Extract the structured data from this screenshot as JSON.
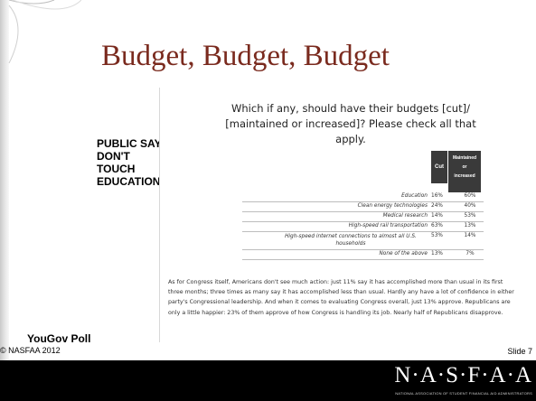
{
  "slide": {
    "title": "Budget, Budget, Budget",
    "side_note": "PUBLIC SAYS DON'T TOUCH EDUCATION!",
    "source_label": "YouGov Poll",
    "copyright": "© NASFAA 2012",
    "slide_number": "Slide 7",
    "logo_text": "N·A·S·F·A·A",
    "logo_tagline": "NATIONAL ASSOCIATION OF STUDENT FINANCIAL AID ADMINISTRATORS"
  },
  "poll": {
    "question": "Which if any, should have their budgets [cut]/ [maintained or increased]? Please check all that apply.",
    "columns": {
      "cut": "Cut",
      "maintained_top": "Maintained",
      "maintained_mid": "or",
      "maintained_bot": "increased"
    },
    "rows": [
      {
        "label": "Education",
        "cut": "16%",
        "maintained": "60%"
      },
      {
        "label": "Clean energy technologies",
        "cut": "24%",
        "maintained": "40%"
      },
      {
        "label": "Medical research",
        "cut": "14%",
        "maintained": "53%"
      },
      {
        "label": "High-speed rail transportation",
        "cut": "63%",
        "maintained": "13%"
      },
      {
        "label": "High-speed internet connections to almost all U.S. households",
        "cut": "53%",
        "maintained": "14%"
      },
      {
        "label": "None of the above",
        "cut": "13%",
        "maintained": "7%"
      }
    ],
    "paragraph": "As for Congress itself, Americans don't see much action: just 11% say it has accomplished more than usual in its first three months; three times as many say it has accomplished less than usual. Hardly any have a lot of confidence in either party's Congressional leadership. And when it comes to evaluating Congress overall, just 13% approve. Republicans are only a little happier: 23% of them approve of how Congress is handling its job. Nearly half of Republicans disapprove."
  },
  "chart_data": {
    "type": "table",
    "title": "Which if any, should have their budgets [cut]/ [maintained or increased]? Please check all that apply.",
    "columns": [
      "Cut",
      "Maintained or increased"
    ],
    "categories": [
      "Education",
      "Clean energy technologies",
      "Medical research",
      "High-speed rail transportation",
      "High-speed internet connections to almost all U.S. households",
      "None of the above"
    ],
    "series": [
      {
        "name": "Cut",
        "values": [
          16,
          24,
          14,
          63,
          53,
          13
        ]
      },
      {
        "name": "Maintained or increased",
        "values": [
          60,
          40,
          53,
          13,
          14,
          7
        ]
      }
    ]
  },
  "colors": {
    "title": "#7a2a1e",
    "footer_bg": "#000000",
    "table_header_bg": "#3a3a3a"
  }
}
